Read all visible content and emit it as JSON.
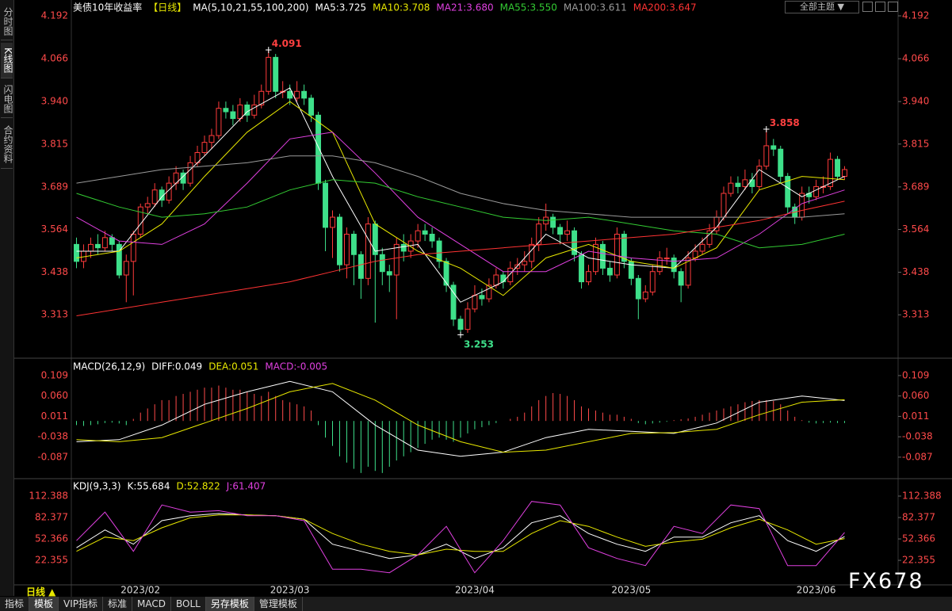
{
  "window": {
    "tabs": [
      "分时图",
      "K线图",
      "闪电图",
      "合约资料"
    ],
    "theme": "全部主题",
    "period": "日线 ▲",
    "toolbar": [
      "指标",
      "模板",
      "VIP指标",
      "标准",
      "MACD",
      "BOLL",
      "另存模板",
      "管理模板"
    ],
    "watermark": "FX678"
  },
  "chart_data": [
    {
      "type": "candlestick",
      "title": "美债10年收益率",
      "period": "【日线】",
      "ma_label": "MA(5,10,21,55,100,200)",
      "up_color": "#ff3b3b",
      "down_color": "#3ee08a",
      "open": [
        3.52,
        3.47,
        3.5,
        3.52,
        3.51,
        3.54,
        3.52,
        3.43,
        3.47,
        3.55,
        3.63,
        3.64,
        3.68,
        3.65,
        3.7,
        3.73,
        3.7,
        3.76,
        3.79,
        3.82,
        3.84,
        3.92,
        3.91,
        3.89,
        3.93,
        3.9,
        3.93,
        3.97,
        4.07,
        3.97,
        3.97,
        3.95,
        3.97,
        3.95,
        3.9,
        3.7,
        3.57,
        3.6,
        3.46,
        3.55,
        3.49,
        3.42,
        3.58,
        3.49,
        3.44,
        3.43,
        3.52,
        3.5,
        3.53,
        3.56,
        3.55,
        3.53,
        3.47,
        3.4,
        3.3,
        3.27,
        3.33,
        3.37,
        3.36,
        3.4,
        3.43,
        3.41,
        3.45,
        3.46,
        3.47,
        3.52,
        3.58,
        3.6,
        3.57,
        3.55,
        3.56,
        3.49,
        3.41,
        3.44,
        3.52,
        3.45,
        3.43,
        3.55,
        3.47,
        3.42,
        3.36,
        3.38,
        3.44,
        3.48,
        3.48,
        3.44,
        3.4,
        3.48,
        3.5,
        3.52,
        3.56,
        3.6,
        3.67,
        3.7,
        3.69,
        3.71,
        3.69,
        3.75,
        3.81,
        3.8,
        3.72,
        3.63,
        3.6,
        3.67,
        3.66,
        3.69,
        3.69,
        3.77,
        3.72
      ],
      "high": [
        3.54,
        3.52,
        3.54,
        3.55,
        3.56,
        3.55,
        3.53,
        3.49,
        3.56,
        3.64,
        3.66,
        3.7,
        3.69,
        3.72,
        3.75,
        3.74,
        3.78,
        3.81,
        3.84,
        3.86,
        3.94,
        3.94,
        3.93,
        3.95,
        3.94,
        3.96,
        3.99,
        4.091,
        4.08,
        4.0,
        3.99,
        4.0,
        3.99,
        3.96,
        3.91,
        3.71,
        3.62,
        3.61,
        3.57,
        3.56,
        3.5,
        3.6,
        3.59,
        3.51,
        3.46,
        3.54,
        3.55,
        3.55,
        3.58,
        3.58,
        3.57,
        3.54,
        3.48,
        3.41,
        3.31,
        3.35,
        3.4,
        3.39,
        3.42,
        3.45,
        3.44,
        3.47,
        3.48,
        3.5,
        3.54,
        3.6,
        3.64,
        3.61,
        3.58,
        3.59,
        3.57,
        3.5,
        3.46,
        3.54,
        3.53,
        3.47,
        3.57,
        3.56,
        3.48,
        3.43,
        3.4,
        3.46,
        3.5,
        3.51,
        3.49,
        3.45,
        3.5,
        3.52,
        3.54,
        3.58,
        3.62,
        3.69,
        3.72,
        3.72,
        3.74,
        3.73,
        3.77,
        3.858,
        3.83,
        3.81,
        3.73,
        3.64,
        3.69,
        3.69,
        3.71,
        3.72,
        3.79,
        3.78,
        3.75
      ],
      "low": [
        3.45,
        3.45,
        3.48,
        3.49,
        3.5,
        3.5,
        3.42,
        3.35,
        3.37,
        3.54,
        3.61,
        3.63,
        3.63,
        3.64,
        3.68,
        3.68,
        3.69,
        3.75,
        3.78,
        3.8,
        3.83,
        3.89,
        3.87,
        3.88,
        3.88,
        3.89,
        3.92,
        3.96,
        3.95,
        3.95,
        3.93,
        3.94,
        3.93,
        3.88,
        3.68,
        3.5,
        3.48,
        3.44,
        3.42,
        3.4,
        3.36,
        3.4,
        3.29,
        3.4,
        3.38,
        3.3,
        3.47,
        3.48,
        3.51,
        3.53,
        3.51,
        3.45,
        3.38,
        3.28,
        3.253,
        3.26,
        3.32,
        3.34,
        3.35,
        3.39,
        3.39,
        3.4,
        3.43,
        3.44,
        3.45,
        3.5,
        3.56,
        3.55,
        3.52,
        3.53,
        3.47,
        3.39,
        3.4,
        3.43,
        3.43,
        3.41,
        3.42,
        3.45,
        3.4,
        3.3,
        3.35,
        3.37,
        3.43,
        3.46,
        3.42,
        3.35,
        3.39,
        3.47,
        3.49,
        3.51,
        3.55,
        3.59,
        3.66,
        3.67,
        3.68,
        3.67,
        3.68,
        3.74,
        3.78,
        3.7,
        3.61,
        3.58,
        3.59,
        3.64,
        3.65,
        3.67,
        3.68,
        3.71,
        3.71
      ],
      "close": [
        3.47,
        3.5,
        3.52,
        3.51,
        3.54,
        3.52,
        3.43,
        3.47,
        3.55,
        3.63,
        3.64,
        3.68,
        3.65,
        3.7,
        3.73,
        3.7,
        3.76,
        3.79,
        3.82,
        3.84,
        3.92,
        3.91,
        3.89,
        3.93,
        3.9,
        3.93,
        3.97,
        4.07,
        3.97,
        3.97,
        3.95,
        3.97,
        3.95,
        3.9,
        3.7,
        3.57,
        3.6,
        3.46,
        3.55,
        3.49,
        3.42,
        3.58,
        3.49,
        3.44,
        3.43,
        3.52,
        3.5,
        3.53,
        3.56,
        3.55,
        3.53,
        3.47,
        3.4,
        3.3,
        3.27,
        3.33,
        3.37,
        3.36,
        3.4,
        3.43,
        3.41,
        3.45,
        3.46,
        3.47,
        3.52,
        3.58,
        3.6,
        3.57,
        3.55,
        3.56,
        3.49,
        3.41,
        3.44,
        3.52,
        3.45,
        3.43,
        3.55,
        3.47,
        3.42,
        3.36,
        3.38,
        3.44,
        3.48,
        3.48,
        3.44,
        3.4,
        3.48,
        3.5,
        3.52,
        3.56,
        3.6,
        3.67,
        3.7,
        3.69,
        3.71,
        3.69,
        3.75,
        3.81,
        3.8,
        3.72,
        3.63,
        3.6,
        3.67,
        3.66,
        3.69,
        3.69,
        3.77,
        3.72,
        3.74
      ],
      "series": [
        {
          "name": "MA5:3.725",
          "color": "#ffffff",
          "x": [
            0,
            6,
            12,
            18,
            24,
            30,
            36,
            42,
            48,
            54,
            60,
            66,
            72,
            78,
            84,
            90,
            96,
            102,
            108
          ],
          "values": [
            3.5,
            3.5,
            3.66,
            3.78,
            3.91,
            3.98,
            3.72,
            3.5,
            3.52,
            3.35,
            3.41,
            3.55,
            3.48,
            3.46,
            3.45,
            3.57,
            3.74,
            3.66,
            3.72
          ]
        },
        {
          "name": "MA10:3.708",
          "color": "#e8e800",
          "x": [
            0,
            6,
            12,
            18,
            24,
            30,
            36,
            42,
            48,
            54,
            60,
            66,
            72,
            78,
            84,
            90,
            96,
            102,
            108
          ],
          "values": [
            3.48,
            3.5,
            3.58,
            3.72,
            3.85,
            3.94,
            3.85,
            3.58,
            3.5,
            3.45,
            3.37,
            3.48,
            3.52,
            3.47,
            3.45,
            3.51,
            3.68,
            3.72,
            3.71
          ]
        },
        {
          "name": "MA21:3.680",
          "color": "#e040e0",
          "x": [
            0,
            6,
            12,
            18,
            24,
            30,
            36,
            42,
            48,
            54,
            60,
            66,
            72,
            78,
            84,
            90,
            96,
            102,
            108
          ],
          "values": [
            3.6,
            3.53,
            3.52,
            3.58,
            3.7,
            3.83,
            3.85,
            3.73,
            3.6,
            3.52,
            3.44,
            3.44,
            3.5,
            3.48,
            3.47,
            3.48,
            3.55,
            3.64,
            3.68
          ]
        },
        {
          "name": "MA55:3.550",
          "color": "#33cc33",
          "x": [
            0,
            6,
            12,
            18,
            24,
            30,
            36,
            42,
            48,
            54,
            60,
            66,
            72,
            78,
            84,
            90,
            96,
            102,
            108
          ],
          "values": [
            3.67,
            3.63,
            3.6,
            3.61,
            3.63,
            3.68,
            3.71,
            3.7,
            3.66,
            3.63,
            3.6,
            3.59,
            3.6,
            3.58,
            3.56,
            3.55,
            3.51,
            3.52,
            3.55
          ]
        },
        {
          "name": "MA100:3.611",
          "color": "#9a9a9a",
          "x": [
            0,
            6,
            12,
            18,
            24,
            30,
            36,
            42,
            48,
            54,
            60,
            66,
            72,
            78,
            84,
            90,
            96,
            102,
            108
          ],
          "values": [
            3.7,
            3.72,
            3.74,
            3.75,
            3.76,
            3.78,
            3.78,
            3.76,
            3.72,
            3.67,
            3.64,
            3.62,
            3.61,
            3.6,
            3.6,
            3.6,
            3.6,
            3.6,
            3.61
          ]
        },
        {
          "name": "MA200:3.647",
          "color": "#ff3333",
          "x": [
            0,
            6,
            12,
            18,
            24,
            30,
            36,
            42,
            48,
            54,
            60,
            66,
            72,
            78,
            84,
            90,
            96,
            102,
            108
          ],
          "values": [
            3.31,
            3.33,
            3.35,
            3.37,
            3.39,
            3.41,
            3.44,
            3.47,
            3.49,
            3.5,
            3.51,
            3.52,
            3.53,
            3.54,
            3.55,
            3.57,
            3.59,
            3.62,
            3.647
          ]
        }
      ],
      "annotations": [
        {
          "x": 27,
          "y": 4.091,
          "color": "#ff4040"
        },
        {
          "x": 97,
          "y": 3.858,
          "color": "#ff4040"
        },
        {
          "x": 54,
          "y": 3.253,
          "color": "#3ee08a"
        }
      ],
      "xlim": [
        -0.5,
        108.5
      ],
      "ylim": [
        3.19,
        4.192
      ],
      "yticks": [
        3.313,
        3.438,
        3.564,
        3.689,
        3.815,
        {
          "value": 3.94,
          "label": "3.940"
        },
        4.066,
        4.192
      ]
    },
    {
      "type": "macd",
      "title": "MACD(26,12,9)",
      "up_color": "#ff4a4a",
      "down_color": "#3ee08a",
      "histogram": {
        "name": "MACD:-0.005",
        "color": "#e040e0",
        "values": [
          -0.01,
          -0.012,
          -0.01,
          -0.008,
          -0.005,
          -0.004,
          -0.006,
          -0.01,
          0.005,
          0.02,
          0.03,
          0.04,
          0.05,
          0.05,
          0.06,
          0.065,
          0.07,
          0.075,
          0.08,
          0.08,
          0.085,
          0.08,
          0.075,
          0.075,
          0.07,
          0.065,
          0.06,
          0.07,
          0.06,
          0.05,
          0.045,
          0.04,
          0.035,
          0.025,
          -0.01,
          -0.04,
          -0.06,
          -0.085,
          -0.1,
          -0.115,
          -0.125,
          -0.11,
          -0.12,
          -0.125,
          -0.11,
          -0.095,
          -0.085,
          -0.075,
          -0.065,
          -0.055,
          -0.045,
          -0.04,
          -0.045,
          -0.05,
          -0.04,
          -0.03,
          -0.02,
          -0.015,
          -0.01,
          -0.005,
          0,
          0.005,
          0.01,
          0.02,
          0.035,
          0.05,
          0.06,
          0.067,
          0.065,
          0.06,
          0.05,
          0.035,
          0.03,
          0.025,
          0.02,
          0.015,
          0.015,
          0.01,
          0.005,
          -0.005,
          -0.008,
          -0.006,
          -0.004,
          -0.002,
          0.002,
          0.004,
          0.006,
          0.01,
          0.015,
          0.02,
          0.025,
          0.03,
          0.035,
          0.04,
          0.045,
          0.048,
          0.05,
          0.05,
          0.048,
          0.04,
          0.025,
          0.01,
          0.002,
          -0.004,
          -0.006,
          -0.005,
          -0.004,
          -0.005,
          -0.005
        ]
      },
      "series": [
        {
          "name": "DIFF:0.049",
          "color": "#ffffff",
          "x": [
            0,
            6,
            12,
            18,
            24,
            30,
            36,
            42,
            48,
            54,
            60,
            66,
            72,
            78,
            84,
            90,
            96,
            102,
            108
          ],
          "values": [
            -0.05,
            -0.045,
            -0.01,
            0.04,
            0.07,
            0.095,
            0.07,
            -0.01,
            -0.07,
            -0.085,
            -0.075,
            -0.04,
            -0.02,
            -0.025,
            -0.03,
            -0.005,
            0.045,
            0.06,
            0.049
          ]
        },
        {
          "name": "DEA:0.051",
          "color": "#e8e800",
          "x": [
            0,
            6,
            12,
            18,
            24,
            30,
            36,
            42,
            48,
            54,
            60,
            66,
            72,
            78,
            84,
            90,
            96,
            102,
            108
          ],
          "values": [
            -0.045,
            -0.05,
            -0.04,
            -0.005,
            0.03,
            0.07,
            0.09,
            0.05,
            -0.01,
            -0.05,
            -0.075,
            -0.07,
            -0.05,
            -0.03,
            -0.028,
            -0.02,
            0.015,
            0.045,
            0.051
          ]
        }
      ],
      "xlim": [
        -0.5,
        108.5
      ],
      "ylim": [
        -0.131,
        0.145
      ],
      "yticks": [
        -0.087,
        -0.038,
        0.011,
        {
          "value": 0.06,
          "label": "0.060"
        },
        0.109
      ]
    },
    {
      "type": "line",
      "title": "KDJ(9,3,3)",
      "series": [
        {
          "name": "K:55.684",
          "color": "#ffffff",
          "x": [
            0,
            4,
            8,
            12,
            16,
            20,
            24,
            28,
            32,
            36,
            40,
            44,
            48,
            52,
            56,
            60,
            64,
            68,
            72,
            76,
            80,
            84,
            88,
            92,
            96,
            100,
            104,
            108
          ],
          "values": [
            40,
            65,
            45,
            78,
            85,
            88,
            86,
            85,
            80,
            45,
            35,
            25,
            30,
            45,
            25,
            40,
            75,
            85,
            60,
            45,
            35,
            55,
            55,
            75,
            85,
            50,
            35,
            55.684
          ]
        },
        {
          "name": "D:52.822",
          "color": "#e8e800",
          "x": [
            0,
            4,
            8,
            12,
            16,
            20,
            24,
            28,
            32,
            36,
            40,
            44,
            48,
            52,
            56,
            60,
            64,
            68,
            72,
            76,
            80,
            84,
            88,
            92,
            96,
            100,
            104,
            108
          ],
          "values": [
            35,
            55,
            50,
            68,
            82,
            86,
            86,
            85,
            80,
            60,
            45,
            35,
            30,
            38,
            35,
            35,
            60,
            78,
            70,
            55,
            42,
            48,
            52,
            68,
            80,
            65,
            45,
            52.822
          ]
        },
        {
          "name": "J:61.407",
          "color": "#e040e0",
          "x": [
            0,
            4,
            8,
            12,
            16,
            20,
            24,
            28,
            32,
            36,
            40,
            44,
            48,
            52,
            56,
            60,
            64,
            68,
            72,
            76,
            80,
            84,
            88,
            92,
            96,
            100,
            104,
            108
          ],
          "values": [
            50,
            90,
            35,
            100,
            90,
            92,
            85,
            85,
            78,
            10,
            10,
            5,
            30,
            70,
            5,
            50,
            105,
            100,
            40,
            25,
            15,
            70,
            60,
            100,
            95,
            15,
            15,
            61.407
          ]
        }
      ],
      "xlim": [
        -0.5,
        108.5
      ],
      "ylim": [
        -12,
        133.5
      ],
      "yticks": [
        22.355,
        52.366,
        82.377,
        112.388
      ],
      "xticks": [
        {
          "value": 9,
          "label": "2023/02"
        },
        {
          "value": 30,
          "label": "2023/03"
        },
        {
          "value": 56,
          "label": "2023/04"
        },
        {
          "value": 78,
          "label": "2023/05"
        },
        {
          "value": 104,
          "label": "2023/06"
        }
      ]
    }
  ]
}
